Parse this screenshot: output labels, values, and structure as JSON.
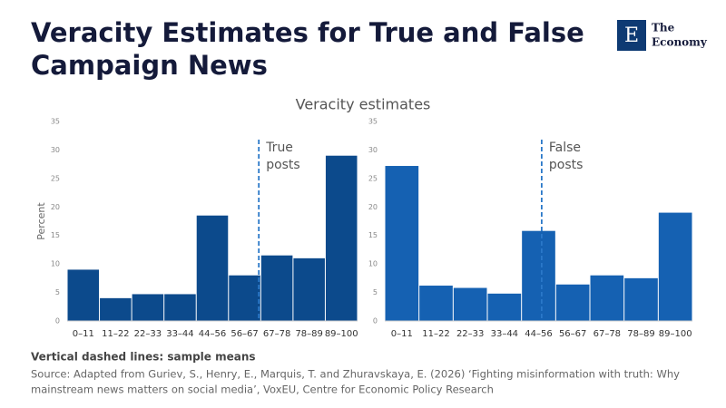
{
  "title": [
    "Veracity Estimates for True and False",
    "Campaign News"
  ],
  "logo": {
    "mark": "E",
    "name": [
      "The",
      "Economy"
    ]
  },
  "subtitle": "Veracity estimates",
  "chart_data": [
    {
      "type": "bar",
      "y_label": "Percent",
      "color": "#0c4a8c",
      "categories": [
        "0–11",
        "11–22",
        "22–33",
        "33–44",
        "44–56",
        "56–67",
        "67–78",
        "78–89",
        "89–100"
      ],
      "values": [
        9,
        4,
        4.7,
        4.7,
        18.5,
        8,
        11.5,
        11,
        29
      ],
      "ylim": [
        0,
        35
      ],
      "yticks": [
        0,
        5,
        10,
        15,
        20,
        25,
        30,
        35
      ],
      "xlim": [
        0,
        100
      ],
      "mean_line": {
        "value": 66,
        "label": [
          "True",
          "posts"
        ]
      }
    },
    {
      "type": "bar",
      "color": "#1561b2",
      "categories": [
        "0–11",
        "11–22",
        "22–33",
        "33–44",
        "44–56",
        "56–67",
        "67–78",
        "78–89",
        "89–100"
      ],
      "values": [
        27.2,
        6.2,
        5.8,
        4.8,
        15.8,
        6.4,
        8,
        7.5,
        19
      ],
      "ylim": [
        0,
        35
      ],
      "yticks": [
        0,
        5,
        10,
        15,
        20,
        25,
        30,
        35
      ],
      "xlim": [
        0,
        100
      ],
      "mean_line": {
        "value": 51,
        "label": [
          "False",
          "posts"
        ]
      }
    }
  ],
  "note": "Vertical dashed lines: sample means",
  "source": [
    "Source: Adapted from Guriev, S., Henry, E., Marquis, T. and Zhuravskaya, E. (2026) ‘Fighting misinformation with truth: Why",
    "mainstream news matters on social media’, VoxEU, Centre for Economic Policy Research"
  ]
}
